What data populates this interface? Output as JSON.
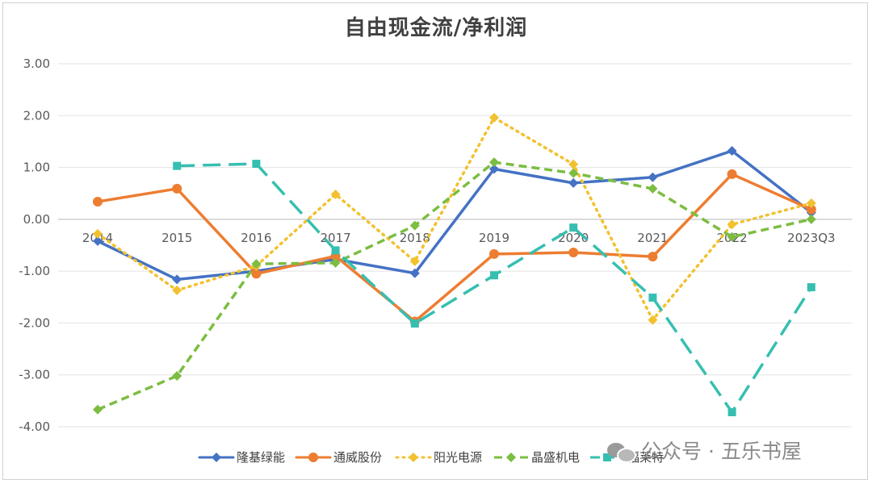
{
  "chart_data": {
    "type": "line",
    "title": "自由现金流/净利润",
    "categories": [
      "2014",
      "2015",
      "2016",
      "2017",
      "2018",
      "2019",
      "2020",
      "2021",
      "2022",
      "2023Q3"
    ],
    "y_ticks": [
      "3.00",
      "2.00",
      "1.00",
      "0.00",
      "-1.00",
      "-2.00",
      "-3.00",
      "-4.00"
    ],
    "ylim": [
      -4,
      3
    ],
    "grid": true,
    "legend_position": "bottom",
    "series": [
      {
        "name": "隆基绿能",
        "color": "#4472C4",
        "style": "solid",
        "marker": "diamond",
        "values": [
          -0.42,
          -1.16,
          -1.0,
          -0.77,
          -1.04,
          0.97,
          0.7,
          0.81,
          1.32,
          0.13
        ]
      },
      {
        "name": "通威股份",
        "color": "#ED7D31",
        "style": "solid",
        "marker": "circle",
        "values": [
          0.34,
          0.59,
          -1.05,
          -0.71,
          -1.97,
          -0.67,
          -0.64,
          -0.72,
          0.87,
          0.19
        ]
      },
      {
        "name": "阳光电源",
        "color": "#F2C12E",
        "style": "dotted",
        "marker": "diamond",
        "values": [
          -0.28,
          -1.37,
          -0.9,
          0.48,
          -0.81,
          1.96,
          1.06,
          -1.94,
          -0.1,
          0.31
        ]
      },
      {
        "name": "晶盛机电",
        "color": "#7CBD42",
        "style": "dashed",
        "marker": "diamond",
        "values": [
          -3.67,
          -3.02,
          -0.86,
          -0.84,
          -0.12,
          1.1,
          0.89,
          0.59,
          -0.34,
          0.0
        ]
      },
      {
        "name": "福莱特",
        "color": "#36BFB0",
        "style": "longdash",
        "marker": "square",
        "values": [
          null,
          1.03,
          1.07,
          -0.6,
          -2.01,
          -1.08,
          -0.16,
          -1.51,
          -3.72,
          -1.31
        ]
      }
    ]
  },
  "watermark": {
    "text": "公众号 · 五乐书屋",
    "icon": "wechat-icon"
  }
}
